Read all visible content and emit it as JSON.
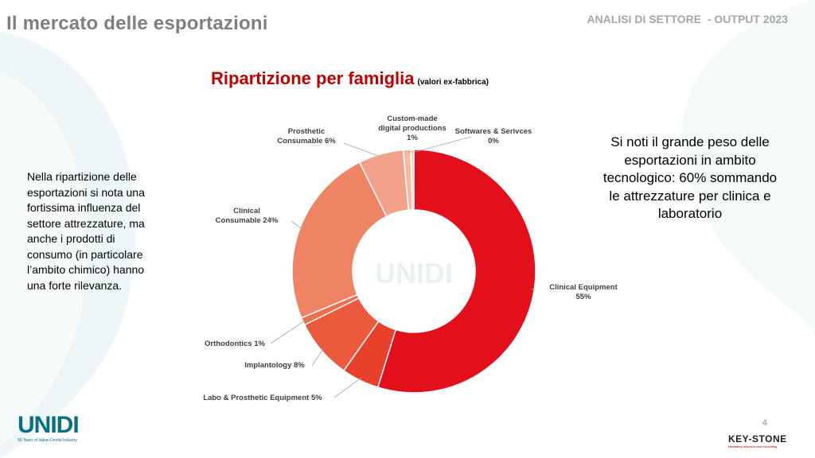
{
  "header": {
    "title": "Il mercato delle esportazioni",
    "right_label": "ANALISI DI SETTORE  - OUTPUT 2023"
  },
  "chart_title": {
    "main": "Ripartizione per famiglia",
    "sub": "(valori ex-fabbrica)"
  },
  "left_text": "Nella ripartizione delle esportazioni si nota una fortissima influenza del settore attrezzature, ma anche i prodotti di consumo (in particolare l’ambito chimico) hanno una forte rilevanza.",
  "right_note": "Si noti il grande peso delle esportazioni in ambito tecnologico: 60% sommando le attrezzature per clinica e laboratorio",
  "watermark": "UNIDI",
  "page_number": "4",
  "logos": {
    "unidi": "UNIDI",
    "unidi_tag": "50 Years of Italian Dental Industry",
    "keystone": "KEY-STONE",
    "keystone_tag": "Marketing research and consulting"
  },
  "chart_data": {
    "type": "pie",
    "title": "Ripartizione per famiglia",
    "subtitle": "(valori ex-fabbrica)",
    "slices": [
      {
        "label": "Clinical Equipment",
        "value": 55,
        "pct": "55%",
        "color": "#e3101b"
      },
      {
        "label": "Labo & Prosthetic Equipment",
        "value": 5,
        "pct": "5%",
        "color": "#e8402b"
      },
      {
        "label": "Implantology",
        "value": 8,
        "pct": "8%",
        "color": "#eb5a3c"
      },
      {
        "label": "Orthodontics",
        "value": 1,
        "pct": "1%",
        "color": "#ee6e4e"
      },
      {
        "label": "Clinical Consumable",
        "value": 24,
        "pct": "24%",
        "color": "#ef8465"
      },
      {
        "label": "Prosthetic Consumable",
        "value": 6,
        "pct": "6%",
        "color": "#f2a28a"
      },
      {
        "label": "Custom-made digital productions",
        "value": 1,
        "pct": "1%",
        "color": "#f5b9a5"
      },
      {
        "label": "Softwares & Serivces",
        "value": 0.4,
        "pct": "0%",
        "color": "#f8d0c2"
      }
    ]
  }
}
